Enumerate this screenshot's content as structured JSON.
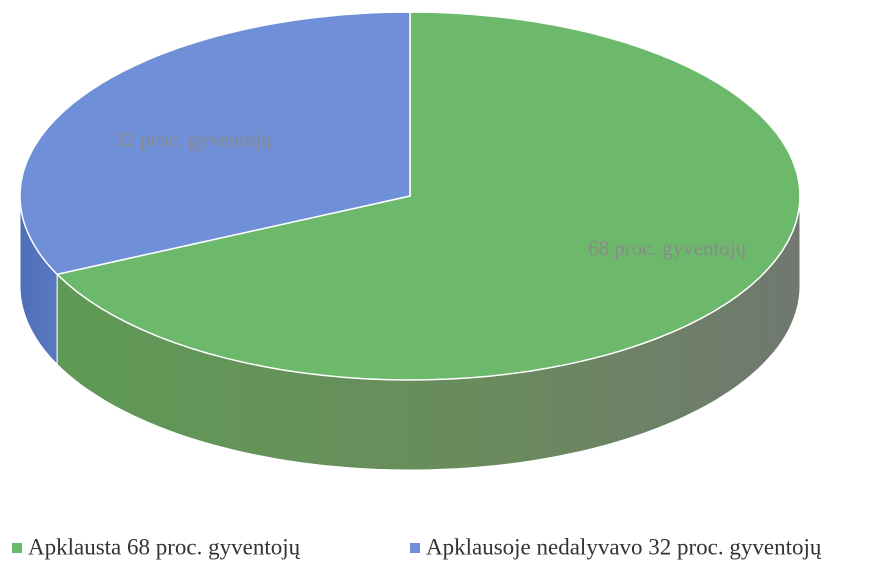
{
  "chart_data": {
    "type": "pie",
    "categories": [
      "Apklausta 68 proc. gyventojų",
      "Apklausoje nedalyvavo 32 proc. gyventojų"
    ],
    "values": [
      68,
      32
    ],
    "value_labels": [
      "68 proc. gyventojų",
      "32 proc. gyventojų"
    ],
    "colors": [
      "#6cb96c",
      "#6f90d8"
    ],
    "legend": "bottom"
  }
}
